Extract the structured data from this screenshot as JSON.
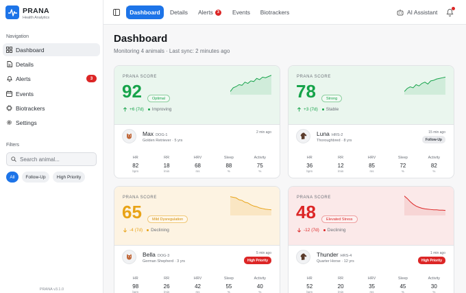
{
  "app": {
    "name": "PRANA",
    "subtitle": "Health Analytics",
    "version": "PRANA v3.1.0"
  },
  "sidebar": {
    "nav_heading": "Navigation",
    "items": [
      {
        "label": "Dashboard",
        "icon": "grid-icon",
        "active": true
      },
      {
        "label": "Details",
        "icon": "document-icon"
      },
      {
        "label": "Alerts",
        "icon": "bell-icon",
        "badge": "3"
      },
      {
        "label": "Events",
        "icon": "calendar-icon"
      },
      {
        "label": "Biotrackers",
        "icon": "sensor-icon"
      },
      {
        "label": "Settings",
        "icon": "gear-icon"
      }
    ],
    "filters_heading": "Filters",
    "search_placeholder": "Search animal...",
    "chips": [
      "All",
      "Follow-Up",
      "High Priority"
    ]
  },
  "topbar": {
    "tabs": [
      "Dashboard",
      "Details",
      "Alerts",
      "Events",
      "Biotrackers"
    ],
    "alerts_badge": "3",
    "assistant_label": "AI Assistant"
  },
  "main": {
    "title": "Dashboard",
    "subtitle": "Monitoring 4 animals · Last sync: 2 minutes ago"
  },
  "score_label": "PRANA SCORE",
  "colors": {
    "accent": "#1d74e8",
    "good": "#16a34a",
    "warn": "#e8a317",
    "bad": "#dc2626"
  },
  "animals": [
    {
      "name": "Max",
      "id": "DOG-1",
      "breed": "Golden Retriever · 5 yrs",
      "sync": "2 min ago",
      "tag": "",
      "score": "92",
      "status_pill": "Optimal",
      "delta": "+6 (7d)",
      "trend": "Improving",
      "theme": "good",
      "avatar": "dog-icon",
      "spark": [
        40,
        52,
        56,
        62,
        60,
        70,
        66,
        74,
        72,
        82,
        78,
        86,
        84,
        88,
        92
      ],
      "metrics": [
        {
          "label": "HR",
          "value": "82",
          "unit": "bpm"
        },
        {
          "label": "RR",
          "value": "18",
          "unit": "/min"
        },
        {
          "label": "HRV",
          "value": "68",
          "unit": "ms"
        },
        {
          "label": "Sleep",
          "value": "88",
          "unit": "%"
        },
        {
          "label": "Activity",
          "value": "75",
          "unit": "%"
        }
      ]
    },
    {
      "name": "Luna",
      "id": "HRS-2",
      "breed": "Thoroughbred · 8 yrs",
      "sync": "15 min ago",
      "tag": "Follow-Up",
      "score": "78",
      "status_pill": "Strong",
      "delta": "+3 (7d)",
      "trend": "Stable",
      "theme": "good",
      "avatar": "horse-icon",
      "spark": [
        40,
        50,
        55,
        52,
        62,
        58,
        66,
        70,
        64,
        74,
        76,
        80,
        82,
        84,
        86
      ],
      "metrics": [
        {
          "label": "HR",
          "value": "36",
          "unit": "bpm"
        },
        {
          "label": "RR",
          "value": "12",
          "unit": "/min"
        },
        {
          "label": "HRV",
          "value": "85",
          "unit": "ms"
        },
        {
          "label": "Sleep",
          "value": "72",
          "unit": "%"
        },
        {
          "label": "Activity",
          "value": "82",
          "unit": "%"
        }
      ]
    },
    {
      "name": "Bella",
      "id": "DOG-3",
      "breed": "German Shepherd · 3 yrs",
      "sync": "5 min ago",
      "tag": "High Priority",
      "score": "65",
      "status_pill": "Mild Dysregulation",
      "delta": "-4 (7d)",
      "trend": "Declining",
      "theme": "warn",
      "avatar": "dog-icon",
      "spark": [
        90,
        88,
        86,
        80,
        78,
        72,
        70,
        64,
        60,
        58,
        54,
        52,
        50,
        49,
        48
      ],
      "metrics": [
        {
          "label": "HR",
          "value": "98",
          "unit": "bpm"
        },
        {
          "label": "RR",
          "value": "26",
          "unit": "/min"
        },
        {
          "label": "HRV",
          "value": "42",
          "unit": "ms"
        },
        {
          "label": "Sleep",
          "value": "55",
          "unit": "%"
        },
        {
          "label": "Activity",
          "value": "40",
          "unit": "%"
        }
      ]
    },
    {
      "name": "Thunder",
      "id": "HRS-4",
      "breed": "Quarter Horse · 12 yrs",
      "sync": "1 min ago",
      "tag": "High Priority",
      "score": "48",
      "status_pill": "Elevated Stress",
      "delta": "-12 (7d)",
      "trend": "Declining",
      "theme": "bad",
      "avatar": "horse-icon",
      "spark": [
        92,
        84,
        74,
        66,
        60,
        56,
        53,
        51,
        50,
        49,
        48,
        48,
        47,
        47,
        46
      ],
      "metrics": [
        {
          "label": "HR",
          "value": "52",
          "unit": "bpm"
        },
        {
          "label": "RR",
          "value": "20",
          "unit": "/min"
        },
        {
          "label": "HRV",
          "value": "35",
          "unit": "ms"
        },
        {
          "label": "Sleep",
          "value": "45",
          "unit": "%"
        },
        {
          "label": "Activity",
          "value": "30",
          "unit": "%"
        }
      ]
    }
  ]
}
